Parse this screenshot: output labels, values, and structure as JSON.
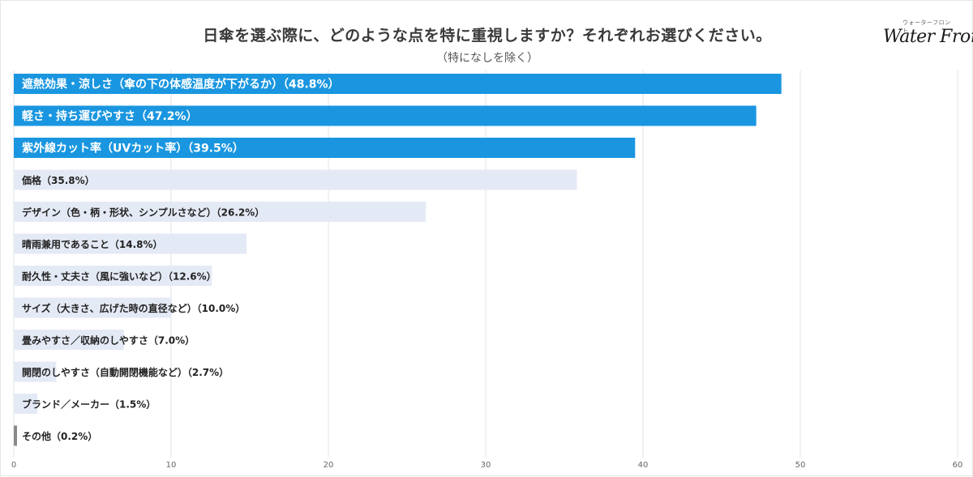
{
  "header": {
    "title": "日傘を選ぶ際に、どのような点を特に重視しますか？それぞれお選びください。",
    "subtitle": "（特になしを除く）"
  },
  "logo": {
    "tagline": "ウォーターフロント",
    "text": "Water Front"
  },
  "colors": {
    "highlight_bar": "#1a96e0",
    "normal_bar": "#e4eaf5",
    "other_bar": "#8a8a8a",
    "grid": "#e3e3e3",
    "axis_text": "#666666"
  },
  "chart_data": {
    "type": "bar",
    "orientation": "horizontal",
    "categories": [
      "遮熱効果・涼しさ（傘の下の体感温度が下がるか）",
      "軽さ・持ち運びやすさ",
      "紫外線カット率（UVカット率）",
      "価格",
      "デザイン（色・柄・形状、シンプルさなど）",
      "晴雨兼用であること",
      "耐久性・丈夫さ（風に強いなど）",
      "サイズ（大きさ、広げた時の直径など）",
      "畳みやすさ／収納のしやすさ",
      "開閉のしやすさ（自動開閉機能など）",
      "ブランド／メーカー",
      "その他"
    ],
    "bar_labels": [
      "遮熱効果・涼しさ（傘の下の体感温度が下がるか）（48.8%）",
      "軽さ・持ち運びやすさ（47.2%）",
      "紫外線カット率（UVカット率）（39.5%）",
      "価格（35.8%）",
      "デザイン（色・柄・形状、シンプルさなど）（26.2%）",
      "晴雨兼用であること（14.8%）",
      "耐久性・丈夫さ（風に強いなど）（12.6%）",
      "サイズ（大きさ、広げた時の直径など）（10.0%）",
      "畳みやすさ／収納のしやすさ（7.0%）",
      "開閉のしやすさ（自動開閉機能など）（2.7%）",
      "ブランド／メーカー（1.5%）",
      "その他（0.2%）"
    ],
    "values": [
      48.8,
      47.2,
      39.5,
      35.8,
      26.2,
      14.8,
      12.6,
      10.0,
      7.0,
      2.7,
      1.5,
      0.2
    ],
    "highlighted": [
      true,
      true,
      true,
      false,
      false,
      false,
      false,
      false,
      false,
      false,
      false,
      false
    ],
    "xlim": [
      0,
      60
    ],
    "ticks": [
      "0",
      "10",
      "20",
      "30",
      "40",
      "50",
      "60"
    ],
    "grid": true,
    "legend": "none"
  }
}
